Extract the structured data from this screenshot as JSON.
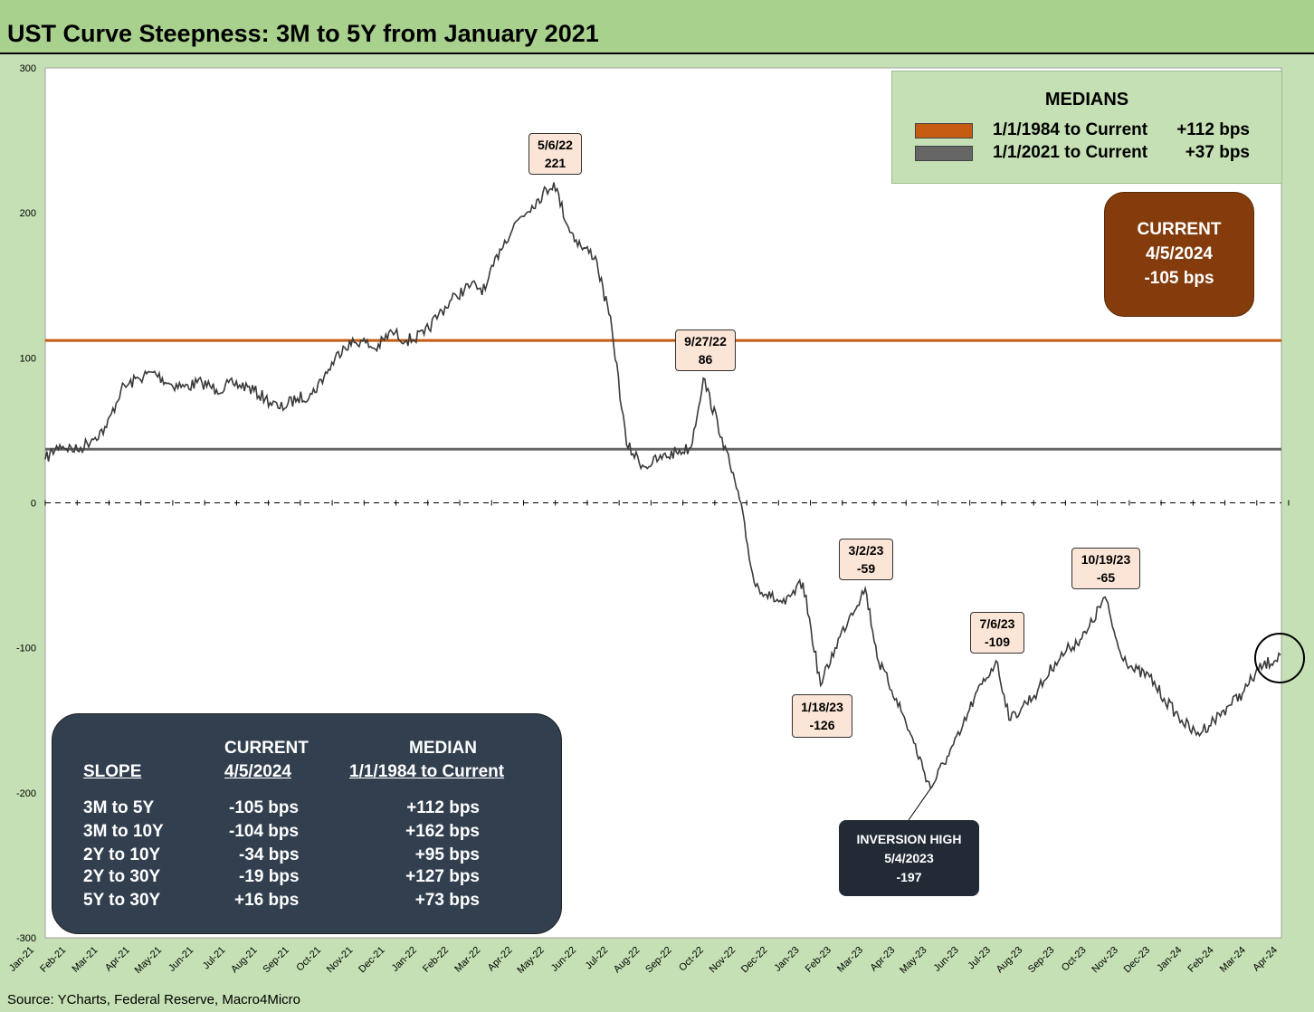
{
  "title": "UST Curve Steepness: 3M to 5Y from January 2021",
  "source": "Source: YCharts, Federal Reserve, Macro4Micro",
  "colors": {
    "median_1984": "#c55a11",
    "median_2021": "#666666",
    "series": "#3a3a3a",
    "background": "#c5e0b4"
  },
  "medians_box": {
    "title": "MEDIANS",
    "rows": [
      {
        "range": "1/1/1984 to Current",
        "value": "+112 bps",
        "color": "#c55a11"
      },
      {
        "range": "1/1/2021 to Current",
        "value": "+37 bps",
        "color": "#666666"
      }
    ]
  },
  "current_box": {
    "line1": "CURRENT",
    "line2": "4/5/2024",
    "line3": "-105 bps"
  },
  "inversion_box": {
    "line1": "INVERSION HIGH",
    "line2": "5/4/2023",
    "line3": "-197"
  },
  "callouts": [
    {
      "date": "5/6/22",
      "value": "221"
    },
    {
      "date": "9/27/22",
      "value": "86"
    },
    {
      "date": "3/2/23",
      "value": "-59"
    },
    {
      "date": "10/19/23",
      "value": "-65"
    },
    {
      "date": "7/6/23",
      "value": "-109"
    },
    {
      "date": "1/18/23",
      "value": "-126"
    }
  ],
  "slope_table": {
    "col_current": "CURRENT",
    "col_current_date": "4/5/2024",
    "col_median": "MEDIAN",
    "col_median_range": "1/1/1984 to Current",
    "col_slope": "SLOPE",
    "rows": [
      {
        "slope": "3M to 5Y",
        "current": "-105 bps",
        "median": "+112 bps"
      },
      {
        "slope": "3M to 10Y",
        "current": "-104 bps",
        "median": "+162 bps"
      },
      {
        "slope": "2Y to 10Y",
        "current": "-34 bps",
        "median": "+95 bps"
      },
      {
        "slope": "2Y to 30Y",
        "current": "-19 bps",
        "median": "+127 bps"
      },
      {
        "slope": "5Y to 30Y",
        "current": "+16 bps",
        "median": "+73 bps"
      }
    ]
  },
  "chart_data": {
    "type": "line",
    "title": "UST Curve Steepness: 3M to 5Y from January 2021",
    "xlabel": "",
    "ylabel": "",
    "ylim": [
      -300,
      300
    ],
    "y_ticks": [
      300,
      200,
      100,
      0,
      -100,
      -200,
      -300
    ],
    "x_ticks": [
      "Jan-21",
      "Feb-21",
      "Mar-21",
      "Apr-21",
      "May-21",
      "Jun-21",
      "Jul-21",
      "Aug-21",
      "Sep-21",
      "Oct-21",
      "Nov-21",
      "Dec-21",
      "Jan-22",
      "Feb-22",
      "Mar-22",
      "Apr-22",
      "May-22",
      "Jun-22",
      "Jul-22",
      "Aug-22",
      "Sep-22",
      "Oct-22",
      "Nov-22",
      "Dec-22",
      "Jan-23",
      "Feb-23",
      "Mar-23",
      "Apr-23",
      "May-23",
      "Jun-23",
      "Jul-23",
      "Aug-23",
      "Sep-23",
      "Oct-23",
      "Nov-23",
      "Dec-23",
      "Jan-24",
      "Feb-24",
      "Mar-24",
      "Apr-24"
    ],
    "reference_lines": [
      {
        "value": 112,
        "color": "#c55a11"
      },
      {
        "value": 37,
        "color": "#666666"
      },
      {
        "value": 0,
        "style": "dashed"
      }
    ],
    "series": [
      {
        "x": [
          "2021-01-01",
          "2021-01-15",
          "2021-02-01",
          "2021-02-15",
          "2021-03-01",
          "2021-03-15",
          "2021-04-01",
          "2021-04-15",
          "2021-05-01",
          "2021-05-15",
          "2021-06-01",
          "2021-06-15",
          "2021-07-01",
          "2021-07-15",
          "2021-08-01",
          "2021-08-15",
          "2021-09-01",
          "2021-09-15",
          "2021-10-01",
          "2021-10-15",
          "2021-11-01",
          "2021-11-15",
          "2021-12-01",
          "2021-12-15",
          "2022-01-01",
          "2022-01-15",
          "2022-02-01",
          "2022-02-15",
          "2022-03-01",
          "2022-03-15",
          "2022-04-01",
          "2022-04-15",
          "2022-05-06",
          "2022-05-20",
          "2022-06-01",
          "2022-06-15",
          "2022-07-01",
          "2022-07-15",
          "2022-08-01",
          "2022-08-15",
          "2022-09-01",
          "2022-09-15",
          "2022-09-27",
          "2022-10-15",
          "2022-11-01",
          "2022-11-15",
          "2022-12-01",
          "2022-12-15",
          "2023-01-01",
          "2023-01-18",
          "2023-02-01",
          "2023-02-15",
          "2023-03-02",
          "2023-03-15",
          "2023-04-01",
          "2023-04-15",
          "2023-05-04",
          "2023-05-20",
          "2023-06-01",
          "2023-06-15",
          "2023-07-06",
          "2023-07-20",
          "2023-08-01",
          "2023-08-15",
          "2023-09-01",
          "2023-09-15",
          "2023-10-01",
          "2023-10-19",
          "2023-11-01",
          "2023-11-15",
          "2023-12-01",
          "2023-12-15",
          "2024-01-01",
          "2024-01-15",
          "2024-02-01",
          "2024-02-15",
          "2024-03-01",
          "2024-03-15",
          "2024-04-05"
        ],
        "values": [
          30,
          40,
          36,
          44,
          52,
          78,
          86,
          90,
          82,
          80,
          83,
          78,
          82,
          80,
          72,
          65,
          72,
          75,
          92,
          108,
          112,
          106,
          118,
          112,
          116,
          130,
          143,
          150,
          147,
          175,
          195,
          205,
          221,
          190,
          177,
          170,
          120,
          40,
          25,
          30,
          35,
          38,
          86,
          45,
          2,
          -55,
          -65,
          -70,
          -55,
          -126,
          -100,
          -78,
          -59,
          -110,
          -135,
          -160,
          -197,
          -175,
          -160,
          -135,
          -109,
          -150,
          -140,
          -130,
          -110,
          -100,
          -90,
          -65,
          -100,
          -115,
          -120,
          -135,
          -150,
          -160,
          -150,
          -140,
          -130,
          -115,
          -105
        ]
      }
    ]
  }
}
